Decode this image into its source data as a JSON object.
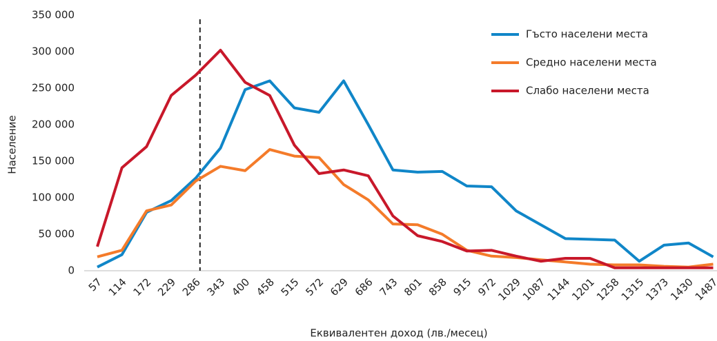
{
  "chart_data": {
    "type": "line",
    "x_label": "Еквивалентен доход (лв./месец)",
    "y_label": "Население",
    "categories": [
      "57",
      "114",
      "172",
      "229",
      "286",
      "343",
      "400",
      "458",
      "515",
      "572",
      "629",
      "686",
      "743",
      "801",
      "858",
      "915",
      "972",
      "1029",
      "1087",
      "1144",
      "1201",
      "1258",
      "1315",
      "1373",
      "1430",
      "1487"
    ],
    "series": [
      {
        "name": "Гъсто населени места",
        "color": "#1086c8",
        "values": [
          5000,
          22000,
          80000,
          96000,
          127000,
          168000,
          248000,
          260000,
          223000,
          217000,
          260000,
          200000,
          138000,
          135000,
          136000,
          116000,
          115000,
          82000,
          63000,
          44000,
          43000,
          42000,
          13000,
          35000,
          38000,
          19000
        ]
      },
      {
        "name": "Средно населени места",
        "color": "#f47b2a",
        "values": [
          19000,
          28000,
          82000,
          90000,
          123000,
          143000,
          137000,
          166000,
          157000,
          155000,
          118000,
          97000,
          64000,
          63000,
          50000,
          28000,
          20000,
          18000,
          15000,
          12000,
          9000,
          8000,
          8000,
          6000,
          5000,
          9000
        ]
      },
      {
        "name": "Слабо населени места",
        "color": "#c8182a",
        "values": [
          33000,
          141000,
          170000,
          240000,
          268000,
          302000,
          258000,
          240000,
          172000,
          133000,
          138000,
          130000,
          75000,
          48000,
          40000,
          27000,
          28000,
          20000,
          13000,
          17000,
          17000,
          4000,
          4000,
          4000,
          4000,
          4000
        ]
      }
    ],
    "ylim": [
      0,
      350000
    ],
    "yticks": [
      0,
      {
        "value": 50000,
        "label": "50 000"
      },
      {
        "value": 100000,
        "label": "100 000"
      },
      {
        "value": 150000,
        "label": "150 000"
      },
      {
        "value": 200000,
        "label": "200 000"
      },
      {
        "value": 250000,
        "label": "250 000"
      },
      {
        "value": 300000,
        "label": "300 000"
      },
      {
        "value": 350000,
        "label": "350 000"
      }
    ],
    "reference_line_category": "286",
    "legend": "upper right",
    "grid": false
  }
}
